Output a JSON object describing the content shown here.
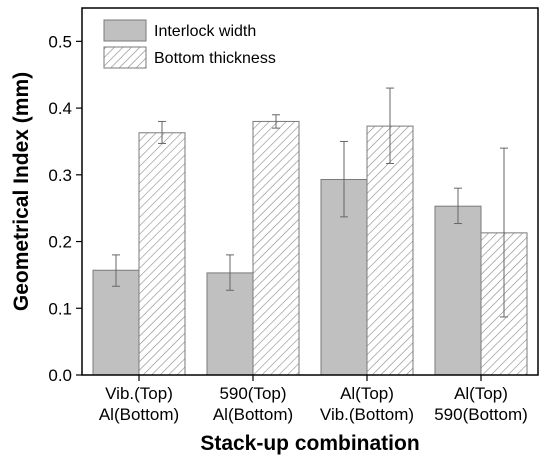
{
  "chart_data": {
    "type": "bar",
    "title": "",
    "xlabel": "Stack-up combination",
    "ylabel": "Geometrical Index (mm)",
    "ylim": [
      0.0,
      0.55
    ],
    "yticks": [
      "0.0",
      "0.1",
      "0.2",
      "0.3",
      "0.4",
      "0.5"
    ],
    "categories": [
      [
        "Vib.(Top)",
        "Al(Bottom)"
      ],
      [
        "590(Top)",
        "Al(Bottom)"
      ],
      [
        "Al(Top)",
        "Vib.(Bottom)"
      ],
      [
        "Al(Top)",
        "590(Bottom)"
      ]
    ],
    "series": [
      {
        "name": "Interlock width",
        "values": [
          0.157,
          0.153,
          0.293,
          0.253
        ],
        "err_low": [
          0.133,
          0.127,
          0.237,
          0.227
        ],
        "err_high": [
          0.18,
          0.18,
          0.35,
          0.28
        ],
        "fill": "#c0c0c0",
        "pattern": "solid"
      },
      {
        "name": "Bottom thickness",
        "values": [
          0.363,
          0.38,
          0.373,
          0.213
        ],
        "err_low": [
          0.347,
          0.37,
          0.317,
          0.087
        ],
        "err_high": [
          0.38,
          0.39,
          0.43,
          0.34
        ],
        "fill": "#ffffff",
        "pattern": "hatch"
      }
    ],
    "grid": false,
    "legend_position": "top-left"
  }
}
